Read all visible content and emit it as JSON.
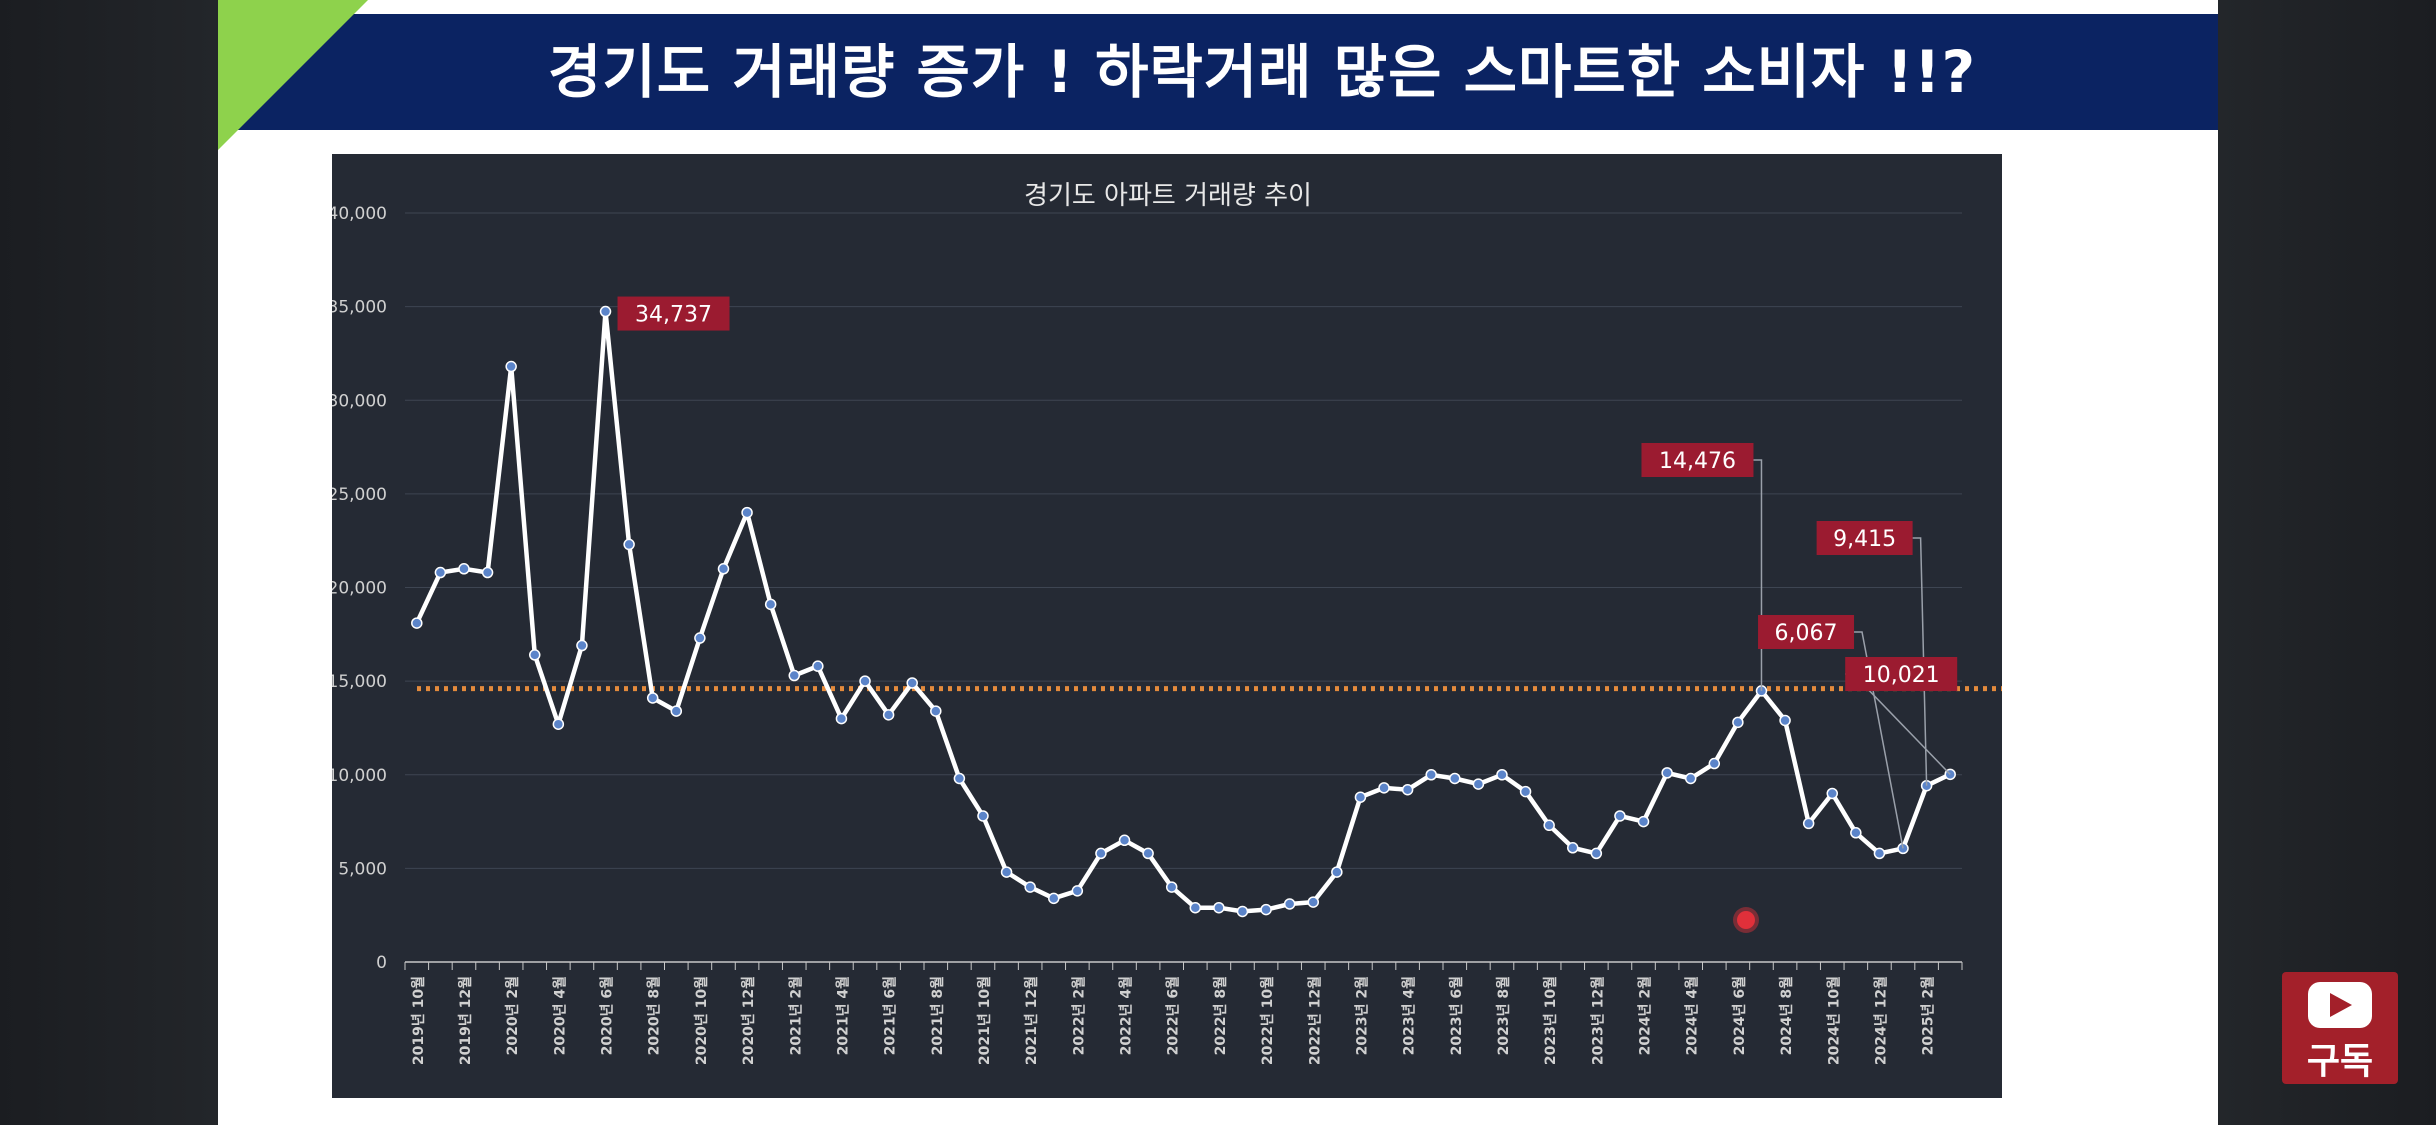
{
  "banner": {
    "title": "경기도 거래량 증가 !  하락거래 많은 스마트한 소비자 !!?"
  },
  "subscribe": {
    "label": "구독",
    "icon": "youtube-play-icon"
  },
  "colors": {
    "banner": "#0b2362",
    "accent": "#8ed24c",
    "chart_bg": "#252a34",
    "line": "#ffffff",
    "marker": "#5b84c9",
    "average_line": "#e38a3c",
    "callout": "#9b1b30"
  },
  "chart_data": {
    "type": "line",
    "title": "경기도 아파트 거래량 추이",
    "xlabel": "",
    "ylabel": "",
    "ylim": [
      0,
      40000
    ],
    "yticks": [
      0,
      5000,
      10000,
      15000,
      20000,
      25000,
      30000,
      35000,
      40000
    ],
    "ytick_labels": [
      "0",
      "5,000",
      "10,000",
      "15,000",
      "20,000",
      "25,000",
      "30,000",
      "35,000",
      "40,000"
    ],
    "grid": "horizontal",
    "legend": "none",
    "x": [
      "2019년 10월",
      "2019년 11월",
      "2019년 12월",
      "2020년 1월",
      "2020년 2월",
      "2020년 3월",
      "2020년 4월",
      "2020년 5월",
      "2020년 6월",
      "2020년 7월",
      "2020년 8월",
      "2020년 9월",
      "2020년 10월",
      "2020년 11월",
      "2020년 12월",
      "2021년 1월",
      "2021년 2월",
      "2021년 3월",
      "2021년 4월",
      "2021년 5월",
      "2021년 6월",
      "2021년 7월",
      "2021년 8월",
      "2021년 9월",
      "2021년 10월",
      "2021년 11월",
      "2021년 12월",
      "2022년 1월",
      "2022년 2월",
      "2022년 3월",
      "2022년 4월",
      "2022년 5월",
      "2022년 6월",
      "2022년 7월",
      "2022년 8월",
      "2022년 9월",
      "2022년 10월",
      "2022년 11월",
      "2022년 12월",
      "2023년 1월",
      "2023년 2월",
      "2023년 3월",
      "2023년 4월",
      "2023년 5월",
      "2023년 6월",
      "2023년 7월",
      "2023년 8월",
      "2023년 9월",
      "2023년 10월",
      "2023년 11월",
      "2023년 12월",
      "2024년 1월",
      "2024년 2월",
      "2024년 3월",
      "2024년 4월",
      "2024년 5월",
      "2024년 6월",
      "2024년 7월",
      "2024년 8월",
      "2024년 9월",
      "2024년 10월",
      "2024년 11월",
      "2024년 12월",
      "2025년 1월",
      "2025년 2월",
      "2025년 3월"
    ],
    "x_tick_labels": [
      "2019년 10월",
      "",
      "2019년 12월",
      "",
      "2020년 2월",
      "",
      "2020년 4월",
      "",
      "2020년 6월",
      "",
      "2020년 8월",
      "",
      "2020년 10월",
      "",
      "2020년 12월",
      "",
      "2021년 2월",
      "",
      "2021년 4월",
      "",
      "2021년 6월",
      "",
      "2021년 8월",
      "",
      "2021년 10월",
      "",
      "2021년 12월",
      "",
      "2022년 2월",
      "",
      "2022년 4월",
      "",
      "2022년 6월",
      "",
      "2022년 8월",
      "",
      "2022년 10월",
      "",
      "2022년 12월",
      "",
      "2023년 2월",
      "",
      "2023년 4월",
      "",
      "2023년 6월",
      "",
      "2023년 8월",
      "",
      "2023년 10월",
      "",
      "2023년 12월",
      "",
      "2024년 2월",
      "",
      "2024년 4월",
      "",
      "2024년 6월",
      "",
      "2024년 8월",
      "",
      "2024년 10월",
      "",
      "2024년 12월",
      "",
      "2025년 2월",
      ""
    ],
    "series": [
      {
        "name": "",
        "values": [
          18100,
          20800,
          21000,
          20800,
          31800,
          16400,
          12700,
          16900,
          34737,
          22300,
          14100,
          13400,
          17300,
          21000,
          24000,
          19100,
          15300,
          15800,
          13000,
          15000,
          13200,
          14900,
          13400,
          9800,
          7800,
          4800,
          4000,
          3400,
          3800,
          5800,
          6500,
          5800,
          4000,
          2900,
          2900,
          2700,
          2800,
          3100,
          3200,
          4800,
          8800,
          9300,
          9200,
          10000,
          9800,
          9500,
          10000,
          9100,
          7300,
          6100,
          5800,
          7800,
          7500,
          10100,
          9800,
          10600,
          12800,
          14476,
          12900,
          7400,
          9000,
          6900,
          5800,
          6067,
          9415,
          10021
        ]
      }
    ],
    "average_line": {
      "value": 14600,
      "label": ""
    },
    "annotations": [
      {
        "label": "34,737",
        "x": "2020년 6월",
        "y": 34737
      },
      {
        "label": "14,476",
        "x": "2024년 7월",
        "y": 14476
      },
      {
        "label": "6,067",
        "x": "2025년 1월",
        "y": 6067
      },
      {
        "label": "9,415",
        "x": "2025년 2월",
        "y": 9415
      },
      {
        "label": "10,021",
        "x": "2025년 3월",
        "y": 10021
      }
    ]
  }
}
